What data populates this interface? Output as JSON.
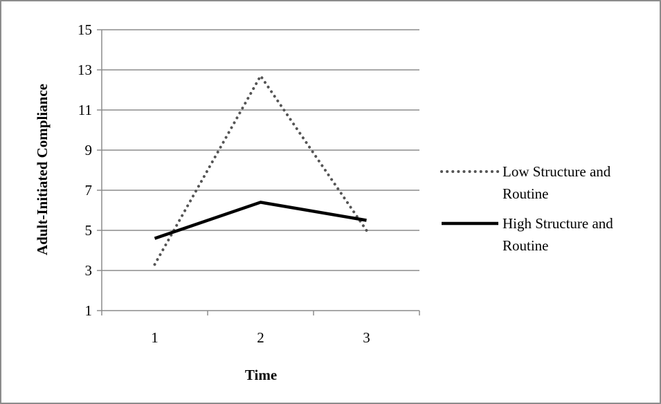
{
  "chart_data": {
    "type": "line",
    "title": "",
    "xlabel": "Time",
    "ylabel": "Adult-Initiated Compliance",
    "x": [
      1,
      2,
      3
    ],
    "x_tick_labels": [
      "1",
      "2",
      "3"
    ],
    "ylim": [
      1,
      15
    ],
    "y_ticks": [
      1,
      3,
      5,
      7,
      9,
      11,
      13,
      15
    ],
    "y_tick_labels": [
      "1",
      "3",
      "5",
      "7",
      "9",
      "11",
      "13",
      "15"
    ],
    "grid": "horizontal",
    "legend_position": "right",
    "series": [
      {
        "name_lines": [
          "Low Structure and",
          "Routine"
        ],
        "values": [
          3.3,
          12.7,
          5.0
        ],
        "style": "dotted",
        "color": "#555555"
      },
      {
        "name_lines": [
          "High Structure and",
          "Routine"
        ],
        "values": [
          4.6,
          6.4,
          5.5
        ],
        "style": "solid",
        "color": "#000000"
      }
    ]
  }
}
